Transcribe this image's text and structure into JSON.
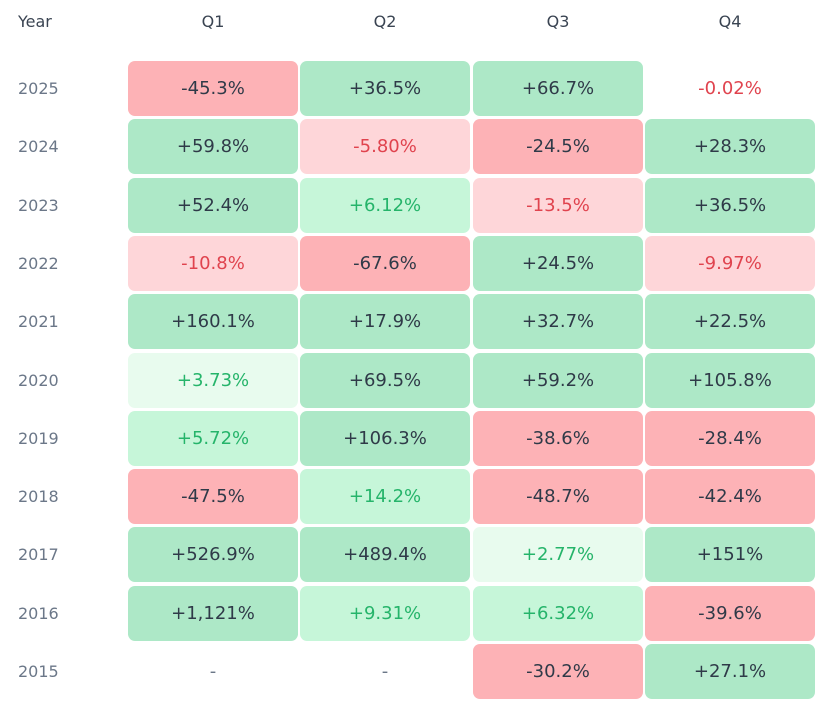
{
  "chart_data": {
    "type": "heatmap",
    "title": "",
    "row_header": "Year",
    "columns": [
      "Q1",
      "Q2",
      "Q3",
      "Q4"
    ],
    "rows": [
      {
        "year": "2025",
        "cells": [
          {
            "text": "-45.3%",
            "value": -45.3,
            "shade": "dark-red"
          },
          {
            "text": "+36.5%",
            "value": 36.5,
            "shade": "dark-green"
          },
          {
            "text": "+66.7%",
            "value": 66.7,
            "shade": "dark-green"
          },
          {
            "text": "-0.02%",
            "value": -0.02,
            "shade": "none"
          }
        ]
      },
      {
        "year": "2024",
        "cells": [
          {
            "text": "+59.8%",
            "value": 59.8,
            "shade": "dark-green"
          },
          {
            "text": "-5.80%",
            "value": -5.8,
            "shade": "light-red"
          },
          {
            "text": "-24.5%",
            "value": -24.5,
            "shade": "dark-red"
          },
          {
            "text": "+28.3%",
            "value": 28.3,
            "shade": "dark-green"
          }
        ]
      },
      {
        "year": "2023",
        "cells": [
          {
            "text": "+52.4%",
            "value": 52.4,
            "shade": "dark-green"
          },
          {
            "text": "+6.12%",
            "value": 6.12,
            "shade": "mid-green"
          },
          {
            "text": "-13.5%",
            "value": -13.5,
            "shade": "light-red"
          },
          {
            "text": "+36.5%",
            "value": 36.5,
            "shade": "dark-green"
          }
        ]
      },
      {
        "year": "2022",
        "cells": [
          {
            "text": "-10.8%",
            "value": -10.8,
            "shade": "light-red"
          },
          {
            "text": "-67.6%",
            "value": -67.6,
            "shade": "dark-red"
          },
          {
            "text": "+24.5%",
            "value": 24.5,
            "shade": "dark-green"
          },
          {
            "text": "-9.97%",
            "value": -9.97,
            "shade": "light-red"
          }
        ]
      },
      {
        "year": "2021",
        "cells": [
          {
            "text": "+160.1%",
            "value": 160.1,
            "shade": "dark-green"
          },
          {
            "text": "+17.9%",
            "value": 17.9,
            "shade": "dark-green"
          },
          {
            "text": "+32.7%",
            "value": 32.7,
            "shade": "dark-green"
          },
          {
            "text": "+22.5%",
            "value": 22.5,
            "shade": "dark-green"
          }
        ]
      },
      {
        "year": "2020",
        "cells": [
          {
            "text": "+3.73%",
            "value": 3.73,
            "shade": "light-green"
          },
          {
            "text": "+69.5%",
            "value": 69.5,
            "shade": "dark-green"
          },
          {
            "text": "+59.2%",
            "value": 59.2,
            "shade": "dark-green"
          },
          {
            "text": "+105.8%",
            "value": 105.8,
            "shade": "dark-green"
          }
        ]
      },
      {
        "year": "2019",
        "cells": [
          {
            "text": "+5.72%",
            "value": 5.72,
            "shade": "mid-green"
          },
          {
            "text": "+106.3%",
            "value": 106.3,
            "shade": "dark-green"
          },
          {
            "text": "-38.6%",
            "value": -38.6,
            "shade": "dark-red"
          },
          {
            "text": "-28.4%",
            "value": -28.4,
            "shade": "dark-red"
          }
        ]
      },
      {
        "year": "2018",
        "cells": [
          {
            "text": "-47.5%",
            "value": -47.5,
            "shade": "dark-red"
          },
          {
            "text": "+14.2%",
            "value": 14.2,
            "shade": "mid-green"
          },
          {
            "text": "-48.7%",
            "value": -48.7,
            "shade": "dark-red"
          },
          {
            "text": "-42.4%",
            "value": -42.4,
            "shade": "dark-red"
          }
        ]
      },
      {
        "year": "2017",
        "cells": [
          {
            "text": "+526.9%",
            "value": 526.9,
            "shade": "dark-green"
          },
          {
            "text": "+489.4%",
            "value": 489.4,
            "shade": "dark-green"
          },
          {
            "text": "+2.77%",
            "value": 2.77,
            "shade": "light-green"
          },
          {
            "text": "+151%",
            "value": 151,
            "shade": "dark-green"
          }
        ]
      },
      {
        "year": "2016",
        "cells": [
          {
            "text": "+1,121%",
            "value": 1121,
            "shade": "dark-green"
          },
          {
            "text": "+9.31%",
            "value": 9.31,
            "shade": "mid-green"
          },
          {
            "text": "+6.32%",
            "value": 6.32,
            "shade": "mid-green"
          },
          {
            "text": "-39.6%",
            "value": -39.6,
            "shade": "dark-red"
          }
        ]
      },
      {
        "year": "2015",
        "cells": [
          {
            "text": "-",
            "value": null,
            "shade": "empty"
          },
          {
            "text": "-",
            "value": null,
            "shade": "empty"
          },
          {
            "text": "-30.2%",
            "value": -30.2,
            "shade": "dark-red"
          },
          {
            "text": "+27.1%",
            "value": 27.1,
            "shade": "dark-green"
          }
        ]
      }
    ],
    "colors": {
      "dark_green_bg": "#ade8c7",
      "mid_green_bg": "#c6f6d9",
      "light_green_bg": "#e8fbee",
      "dark_red_bg": "#fdb2b6",
      "light_red_bg": "#fed6d9",
      "positive_text": "#25b46a",
      "negative_text": "#e0434e",
      "neutral_text": "#2f3a48"
    }
  }
}
